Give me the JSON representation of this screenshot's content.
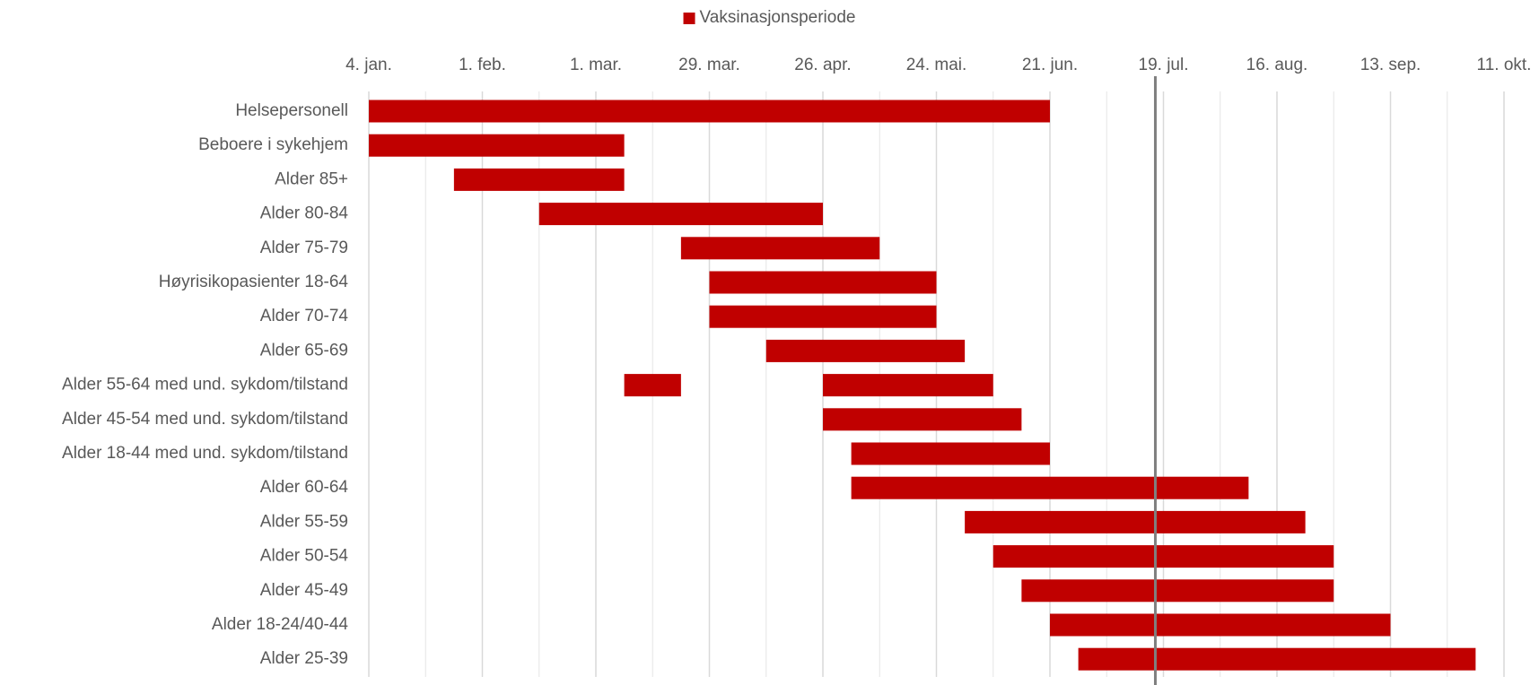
{
  "chart_data": {
    "type": "gantt",
    "categories": [
      "Helsepersonell",
      "Beboere i sykehjem",
      "Alder 85+",
      "Alder 80-84",
      "Alder 75-79",
      "Høyrisikopasienter 18-64",
      "Alder 70-74",
      "Alder 65-69",
      "Alder 55-64 med und. sykdom/tilstand",
      "Alder 45-54 med und. sykdom/tilstand",
      "Alder 18-44 med und. sykdom/tilstand",
      "Alder 60-64",
      "Alder 55-59",
      "Alder 50-54",
      "Alder 45-49",
      "Alder 18-24/40-44",
      "Alder 25-39"
    ],
    "series": [
      {
        "name": "Vaksinasjonsperiode",
        "color": "#c00000",
        "values": [
          [
            [
              4,
              172
            ]
          ],
          [
            [
              4,
              67
            ]
          ],
          [
            [
              25,
              67
            ]
          ],
          [
            [
              46,
              116
            ]
          ],
          [
            [
              81,
              130
            ]
          ],
          [
            [
              88,
              144
            ]
          ],
          [
            [
              88,
              144
            ]
          ],
          [
            [
              102,
              151
            ]
          ],
          [
            [
              67,
              81
            ],
            [
              116,
              158
            ]
          ],
          [
            [
              116,
              165
            ]
          ],
          [
            [
              123,
              172
            ]
          ],
          [
            [
              123,
              221
            ]
          ],
          [
            [
              151,
              235
            ]
          ],
          [
            [
              158,
              242
            ]
          ],
          [
            [
              165,
              242
            ]
          ],
          [
            [
              172,
              256
            ]
          ],
          [
            [
              179,
              277
            ]
          ]
        ]
      }
    ],
    "xlim": [
      4,
      284
    ],
    "xticks": [
      {
        "value": 4,
        "label": "4. jan."
      },
      {
        "value": 32,
        "label": "1. feb."
      },
      {
        "value": 60,
        "label": "1. mar."
      },
      {
        "value": 88,
        "label": "29. mar."
      },
      {
        "value": 116,
        "label": "26. apr."
      },
      {
        "value": 144,
        "label": "24. mai."
      },
      {
        "value": 172,
        "label": "21. jun."
      },
      {
        "value": 200,
        "label": "19. jul."
      },
      {
        "value": 228,
        "label": "16. aug."
      },
      {
        "value": 256,
        "label": "13. sep."
      },
      {
        "value": 284,
        "label": "11. okt."
      }
    ],
    "x_minor_grid": [
      18,
      46,
      74,
      102,
      130,
      158,
      186,
      214,
      242,
      270
    ],
    "grid": true,
    "marker_x": 198,
    "marker_color": "#7f7f7f",
    "legend": "top"
  }
}
